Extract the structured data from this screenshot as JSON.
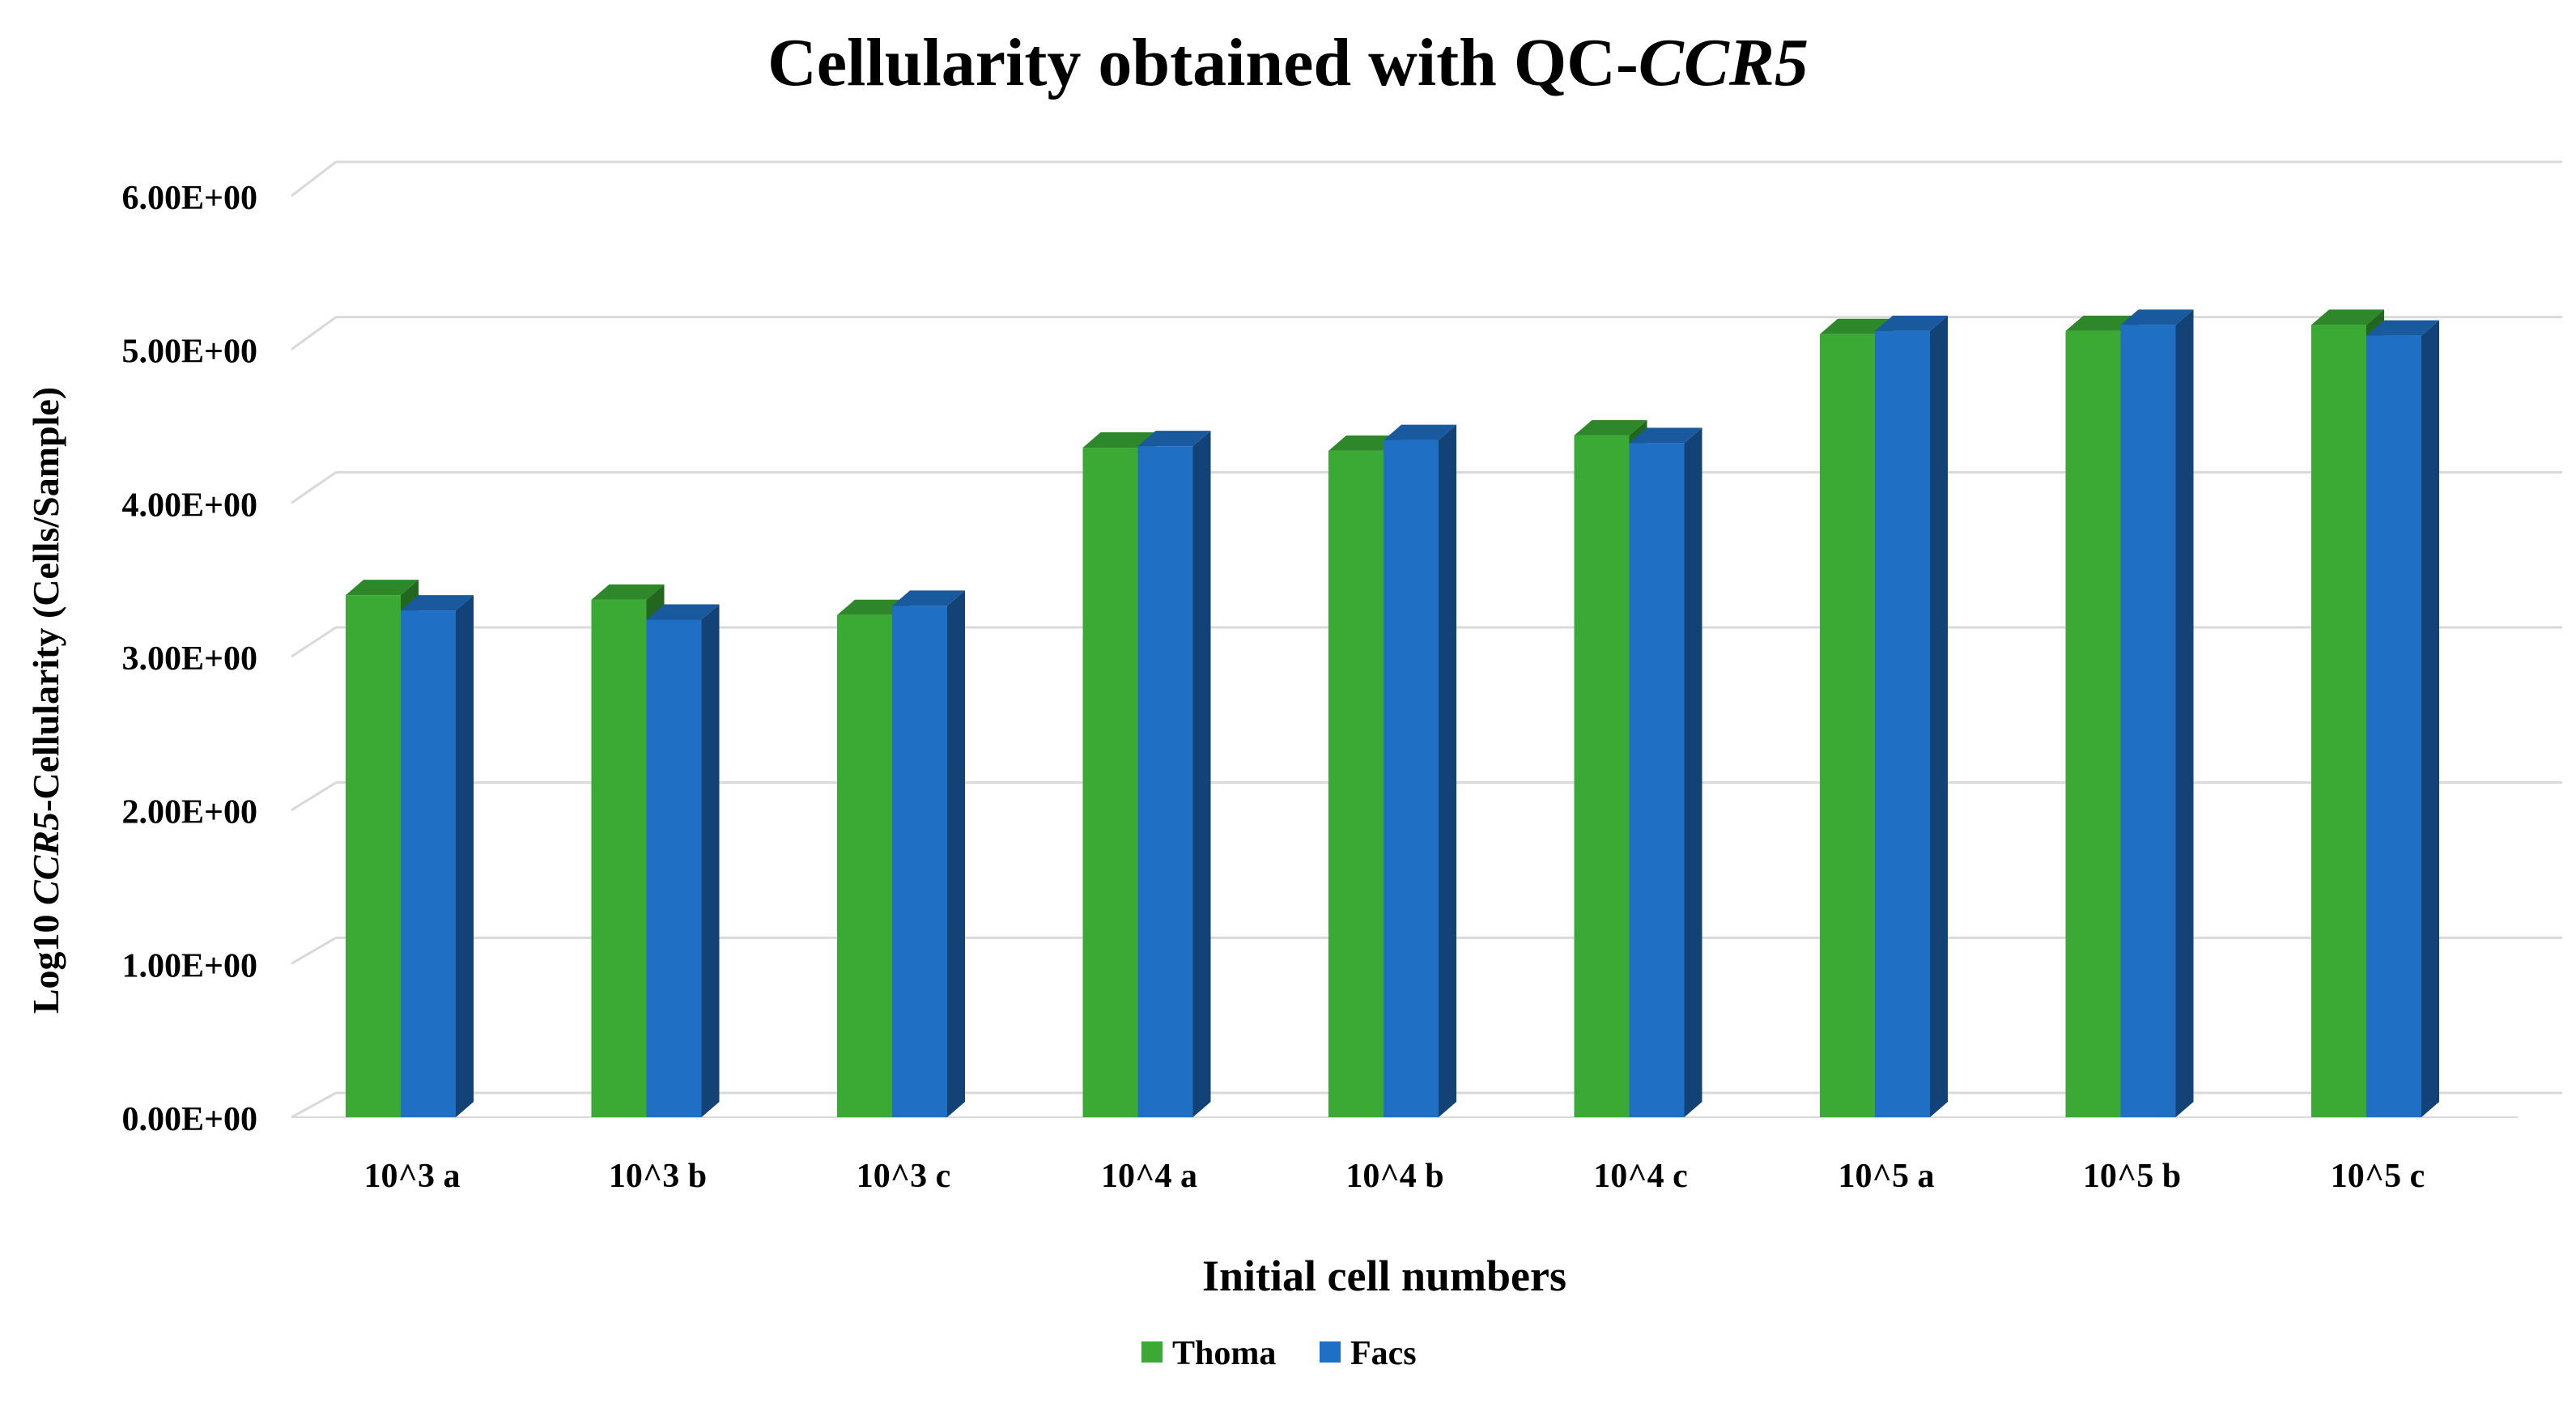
{
  "chart_data": {
    "type": "bar",
    "title_plain": "Cellularity obtained with QC-",
    "title_italic": "CCR5",
    "ylabel_prefix": "Log10 ",
    "ylabel_italic": "CCR5",
    "ylabel_suffix": "-Cellularity  (Cells/Sample)",
    "xlabel": "Initial  cell numbers",
    "categories": [
      "10^3 a",
      "10^3 b",
      "10^3 c",
      "10^4 a",
      "10^4 b",
      "10^4 c",
      "10^5 a",
      "10^5 b",
      "10^5 c"
    ],
    "yticks": [
      "0.00E+00",
      "1.00E+00",
      "2.00E+00",
      "3.00E+00",
      "4.00E+00",
      "5.00E+00",
      "6.00E+00"
    ],
    "ylim": [
      0,
      6
    ],
    "grid": true,
    "legend_position": "bottom",
    "series": [
      {
        "name": "Thoma",
        "color": "#3aaa35",
        "values": [
          3.4,
          3.37,
          3.27,
          4.36,
          4.34,
          4.44,
          5.1,
          5.12,
          5.16
        ]
      },
      {
        "name": "Facs",
        "color": "#1f6fc5",
        "values": [
          3.3,
          3.24,
          3.33,
          4.37,
          4.41,
          4.39,
          5.12,
          5.16,
          5.09
        ]
      }
    ]
  }
}
